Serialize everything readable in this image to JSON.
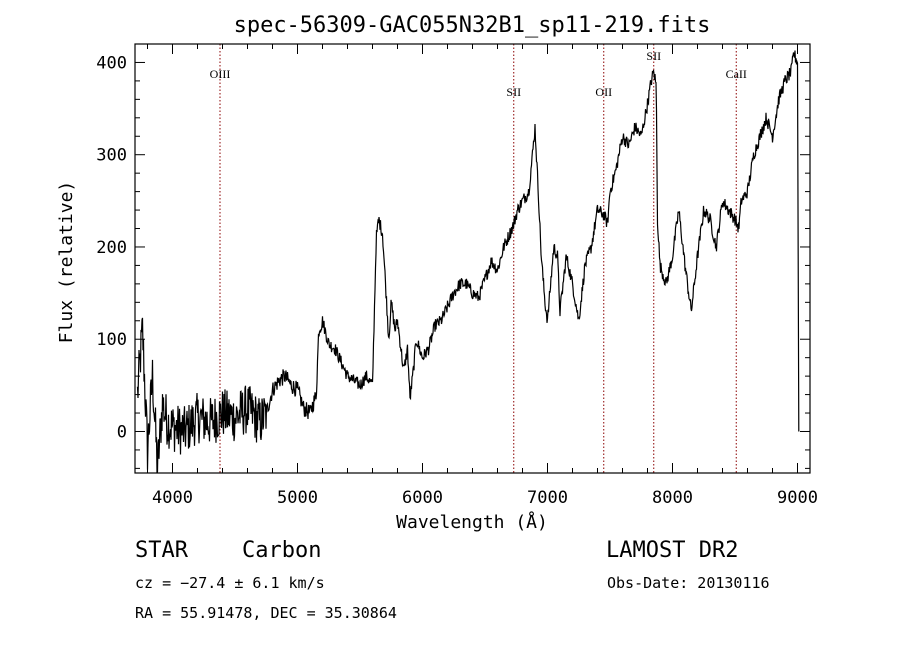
{
  "chart_data": {
    "type": "line",
    "title": "spec-56309-GAC055N32B1_sp11-219.fits",
    "xlabel": "Wavelength (Å)",
    "ylabel": "Flux (relative)",
    "xlim": [
      3700,
      9100
    ],
    "ylim": [
      -45,
      420
    ],
    "xticks": [
      4000,
      5000,
      6000,
      7000,
      8000,
      9000
    ],
    "yticks": [
      0,
      100,
      200,
      300,
      400
    ],
    "grid": false,
    "line_color": "#000000",
    "marker_color": "#8b0000",
    "lines": [
      {
        "label": "OIII",
        "x": 4380
      },
      {
        "label": "SII",
        "x": 6730
      },
      {
        "label": "OII",
        "x": 7450
      },
      {
        "label": "SII",
        "x": 7850
      },
      {
        "label": "CaII",
        "x": 8510
      }
    ],
    "series": [
      {
        "x": [
          3720,
          3760,
          3800,
          3840,
          3880,
          3920,
          3960,
          4000,
          4100,
          4200,
          4300,
          4400,
          4500,
          4600,
          4700,
          4750,
          4800,
          4850,
          4900,
          4950,
          5000,
          5050,
          5100,
          5150,
          5170,
          5200,
          5250,
          5300,
          5350,
          5400,
          5450,
          5500,
          5550,
          5600,
          5630,
          5650,
          5680,
          5700,
          5730,
          5750,
          5780,
          5800,
          5850,
          5880,
          5900,
          5930,
          5950,
          6000,
          6050,
          6100,
          6150,
          6200,
          6250,
          6300,
          6350,
          6400,
          6450,
          6500,
          6550,
          6600,
          6650,
          6700,
          6730,
          6760,
          6800,
          6850,
          6880,
          6900,
          6930,
          6950,
          6980,
          7000,
          7050,
          7080,
          7100,
          7150,
          7200,
          7250,
          7300,
          7350,
          7400,
          7450,
          7480,
          7500,
          7550,
          7600,
          7650,
          7700,
          7750,
          7800,
          7830,
          7850,
          7870,
          7880,
          7900,
          7950,
          8000,
          8050,
          8100,
          8150,
          8200,
          8250,
          8300,
          8350,
          8400,
          8450,
          8500,
          8530,
          8550,
          8600,
          8650,
          8700,
          8750,
          8800,
          8850,
          8900,
          8950,
          8970,
          9000
        ],
        "y": [
          40,
          110,
          -20,
          60,
          -40,
          30,
          10,
          5,
          0,
          15,
          10,
          20,
          15,
          25,
          10,
          20,
          45,
          55,
          60,
          50,
          45,
          25,
          20,
          40,
          110,
          120,
          95,
          90,
          75,
          60,
          55,
          50,
          60,
          50,
          210,
          230,
          215,
          170,
          100,
          140,
          110,
          120,
          65,
          90,
          35,
          70,
          100,
          80,
          90,
          115,
          120,
          135,
          150,
          160,
          160,
          150,
          145,
          165,
          185,
          175,
          200,
          215,
          225,
          240,
          250,
          260,
          300,
          330,
          250,
          190,
          140,
          120,
          200,
          190,
          130,
          190,
          160,
          120,
          180,
          200,
          240,
          235,
          225,
          260,
          285,
          320,
          310,
          330,
          320,
          355,
          380,
          390,
          375,
          230,
          180,
          160,
          190,
          240,
          180,
          130,
          190,
          240,
          230,
          200,
          250,
          240,
          230,
          220,
          250,
          260,
          300,
          320,
          340,
          320,
          360,
          380,
          390,
          410,
          400
        ]
      }
    ]
  },
  "info": {
    "object_class": "STAR",
    "subclass": "Carbon",
    "cz": "cz = −27.4 ± 6.1 km/s",
    "coords": "RA =  55.91478, DEC =  35.30864",
    "release": "LAMOST DR2",
    "obs_date": "Obs-Date: 20130116"
  }
}
